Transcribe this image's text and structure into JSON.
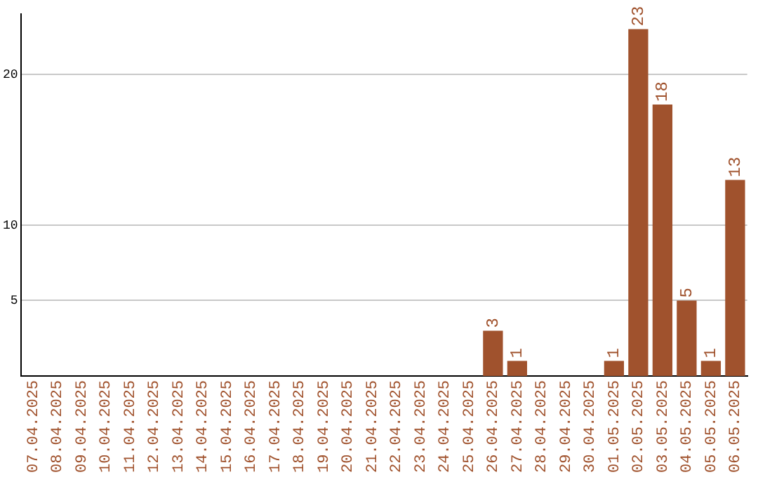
{
  "chart_data": {
    "type": "bar",
    "categories": [
      "07.04.2025",
      "08.04.2025",
      "09.04.2025",
      "10.04.2025",
      "11.04.2025",
      "12.04.2025",
      "13.04.2025",
      "14.04.2025",
      "15.04.2025",
      "16.04.2025",
      "17.04.2025",
      "18.04.2025",
      "19.04.2025",
      "20.04.2025",
      "21.04.2025",
      "22.04.2025",
      "23.04.2025",
      "24.04.2025",
      "25.04.2025",
      "26.04.2025",
      "27.04.2025",
      "28.04.2025",
      "29.04.2025",
      "30.04.2025",
      "01.05.2025",
      "02.05.2025",
      "03.05.2025",
      "04.05.2025",
      "05.05.2025",
      "06.05.2025"
    ],
    "values": [
      0,
      0,
      0,
      0,
      0,
      0,
      0,
      0,
      0,
      0,
      0,
      0,
      0,
      0,
      0,
      0,
      0,
      0,
      0,
      3,
      1,
      0,
      0,
      0,
      1,
      23,
      18,
      5,
      1,
      13
    ],
    "value_labels": [
      null,
      null,
      null,
      null,
      null,
      null,
      null,
      null,
      null,
      null,
      null,
      null,
      null,
      null,
      null,
      null,
      null,
      null,
      null,
      "3",
      "1",
      null,
      null,
      null,
      "1",
      "23",
      "18",
      "5",
      "1",
      "13"
    ],
    "color": "#a0522d",
    "ylim": [
      0,
      24
    ],
    "yticks": [
      5,
      10,
      20
    ],
    "grid": "y",
    "legend": false
  }
}
